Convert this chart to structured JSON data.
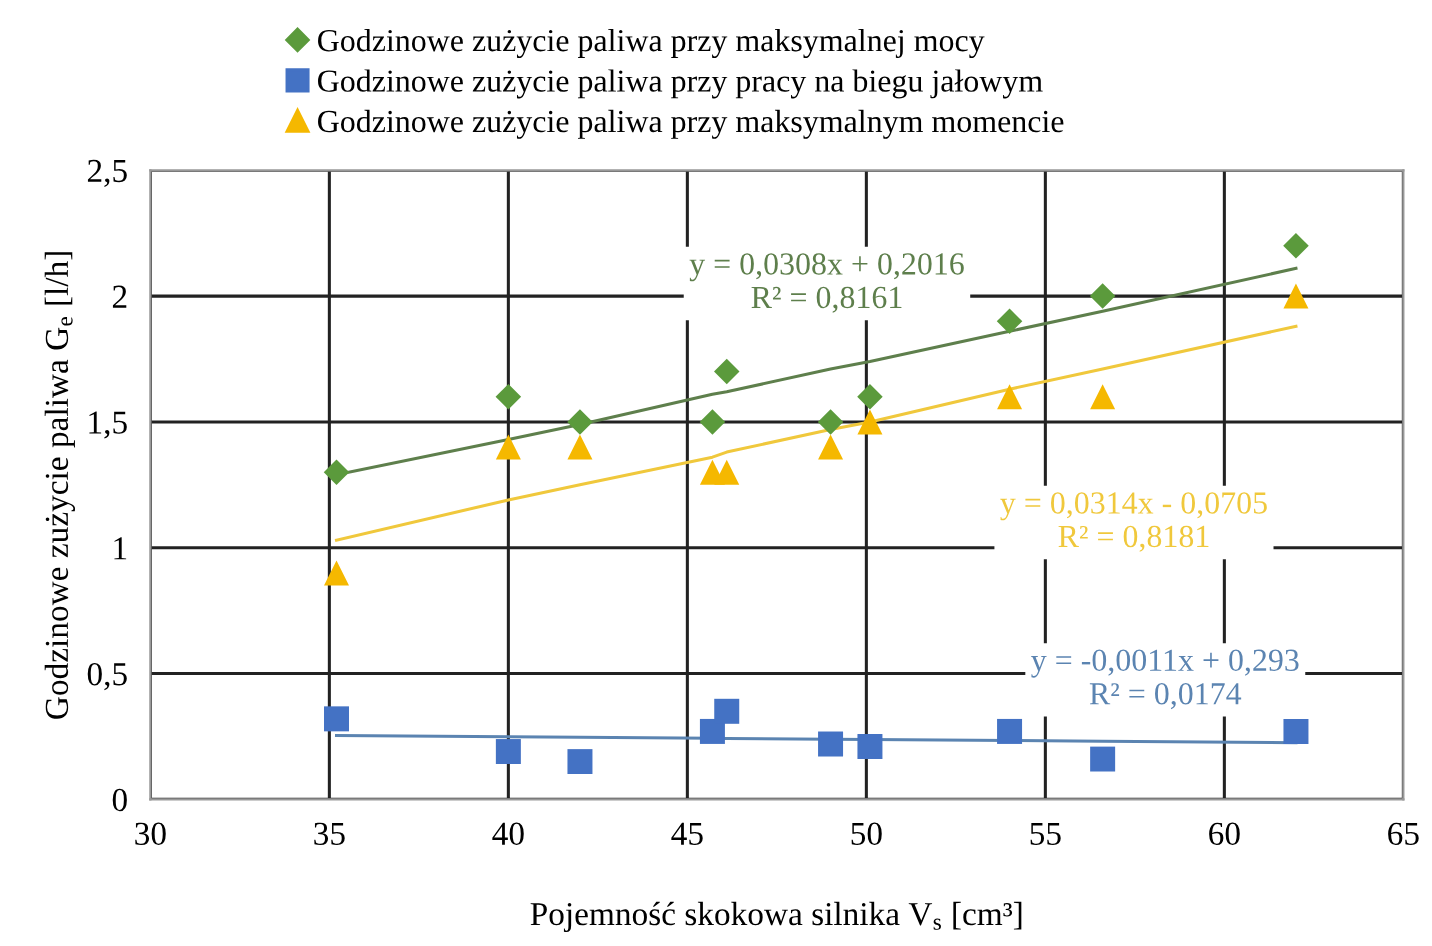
{
  "chart_data": {
    "type": "scatter",
    "xlabel": "Pojemność skokowa silnika V$_{s}$ [cm³]",
    "ylabel": "Godzinowe zużycie paliwa G$_{e}$ [l/h]",
    "x": [
      35.2,
      40,
      42,
      45.7,
      46.1,
      49,
      50.1,
      54,
      56.6,
      62
    ],
    "series": [
      {
        "name": "Godzinowe zużycie paliwa przy maksymalnej mocy",
        "color": "#5b9a3c",
        "marker": "diamond",
        "values": [
          1.3,
          1.6,
          1.5,
          1.5,
          1.7,
          1.5,
          1.6,
          1.9,
          2.0,
          2.2
        ]
      },
      {
        "name": "Godzinowe zużycie paliwa przy pracy na biegu jałowym",
        "color": "#4472c4",
        "marker": "square",
        "values": [
          0.32,
          0.19,
          0.15,
          0.27,
          0.35,
          0.22,
          0.21,
          0.27,
          0.16,
          0.27
        ]
      },
      {
        "name": "Godzinowe zużycie paliwa przy maksymalnym momencie",
        "color": "#f5b800",
        "marker": "triangle",
        "values": [
          0.9,
          1.4,
          1.4,
          1.3,
          1.3,
          1.4,
          1.5,
          1.6,
          1.6,
          2.0
        ]
      },
      {
        "type": "line",
        "color": "#5e7f4c",
        "marker": "none",
        "values": [
          1.29,
          1.43,
          1.49,
          1.61,
          1.62,
          1.71,
          1.74,
          1.86,
          1.94,
          2.11
        ]
      },
      {
        "type": "line",
        "color": "#5b84b1",
        "marker": "none",
        "values": [
          0.254,
          0.249,
          0.247,
          0.243,
          0.242,
          0.239,
          0.238,
          0.234,
          0.231,
          0.225
        ]
      },
      {
        "type": "line",
        "color": "#f0c83c",
        "marker": "none",
        "values": [
          1.03,
          1.19,
          1.25,
          1.36,
          1.38,
          1.47,
          1.5,
          1.63,
          1.71,
          1.88
        ]
      }
    ],
    "annotations": [
      "y = 0,0308x + 0,2016\nR² = 0,8161",
      "y = -0,0011x + 0,293\nR² = 0,0174",
      "y = 0,0314x - 0,0705\nR² = 0,8181"
    ],
    "xlim": [
      30,
      65
    ],
    "xticks": [
      30,
      35,
      40,
      45,
      50,
      55,
      60,
      65
    ],
    "ylim": [
      0,
      2.5
    ],
    "yticks": [
      0,
      {
        "value": 0.5,
        "label": "0,5"
      },
      1,
      {
        "value": 1.5,
        "label": "1,5"
      },
      2,
      {
        "value": 2.5,
        "label": "2,5"
      }
    ],
    "grid": true,
    "legend": "top"
  }
}
